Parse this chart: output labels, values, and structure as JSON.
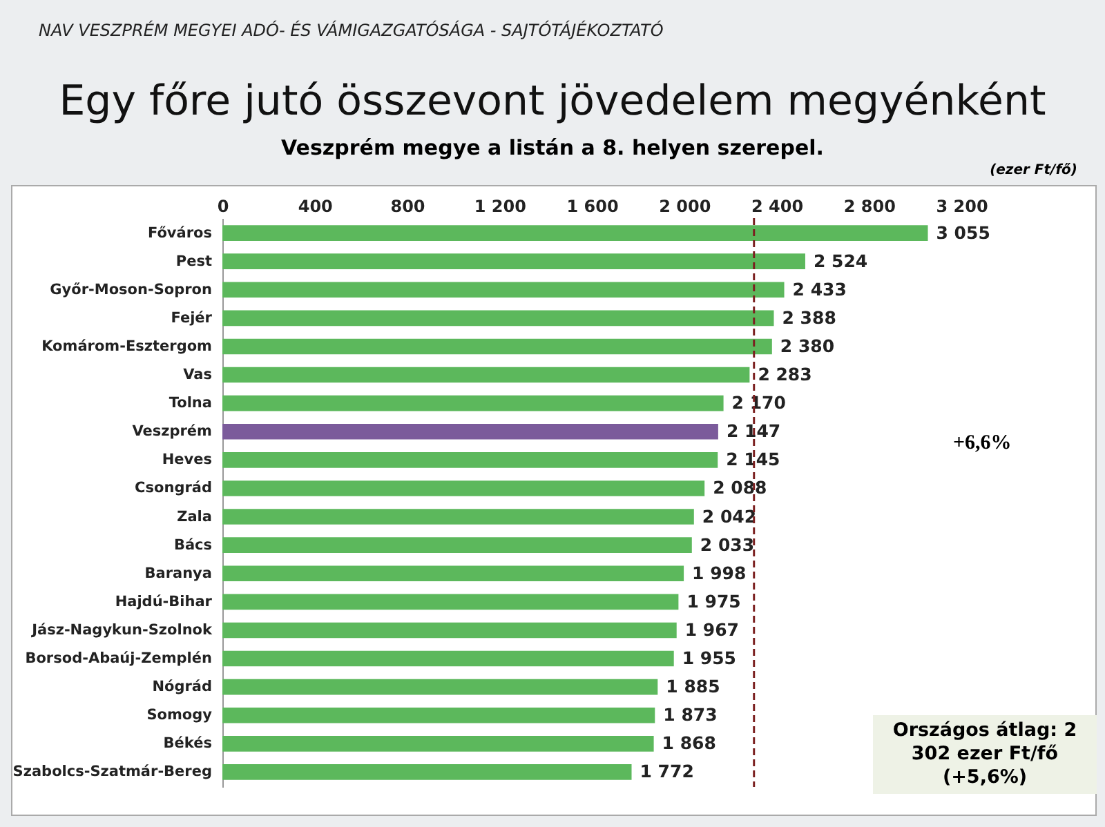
{
  "chart_data": {
    "type": "bar",
    "orientation": "horizontal",
    "title": "Egy főre jutó összevont jövedelem megyénként",
    "subtitle": "Veszprém megye a listán a 8. helyen szerepel.",
    "xlabel": "(ezer Ft/fő)",
    "categories": [
      "Főváros",
      "Pest",
      "Győr-Moson-Sopron",
      "Fejér",
      "Komárom-Esztergom",
      "Vas",
      "Tolna",
      "Veszprém",
      "Heves",
      "Csongrád",
      "Zala",
      "Bács",
      "Baranya",
      "Hajdú-Bihar",
      "Jász-Nagykun-Szolnok",
      "Borsod-Abaúj-Zemplén",
      "Nógrád",
      "Somogy",
      "Békés",
      "Szabolcs-Szatmár-Bereg"
    ],
    "values": [
      3055,
      2524,
      2433,
      2388,
      2380,
      2283,
      2170,
      2147,
      2145,
      2088,
      2042,
      2033,
      1998,
      1975,
      1967,
      1955,
      1885,
      1873,
      1868,
      1772
    ],
    "value_labels": [
      "3 055",
      "2 524",
      "2 433",
      "2 388",
      "2 380",
      "2 283",
      "2 170",
      "2 147",
      "2 145",
      "2 088",
      "2 042",
      "2 033",
      "1 998",
      "1 975",
      "1 967",
      "1 955",
      "1 885",
      "1 873",
      "1 868",
      "1 772"
    ],
    "colors": [
      "#5cb85c",
      "#5cb85c",
      "#5cb85c",
      "#5cb85c",
      "#5cb85c",
      "#5cb85c",
      "#5cb85c",
      "#7b5b9b",
      "#5cb85c",
      "#5cb85c",
      "#5cb85c",
      "#5cb85c",
      "#5cb85c",
      "#5cb85c",
      "#5cb85c",
      "#5cb85c",
      "#5cb85c",
      "#5cb85c",
      "#5cb85c",
      "#5cb85c"
    ],
    "xlim": [
      0,
      3200
    ],
    "xticks": [
      0,
      400,
      800,
      {
        "value": 1200,
        "label": "1 200"
      },
      {
        "value": 1600,
        "label": "1 600"
      },
      {
        "value": 2000,
        "label": "2 000"
      },
      {
        "value": 2400,
        "label": "2 400"
      },
      {
        "value": 2800,
        "label": "2 800"
      },
      {
        "value": 3200,
        "label": "3 200"
      }
    ],
    "ref_lines": [
      {
        "axis": "x",
        "value": 2302,
        "color": "#7b2020",
        "line_style": "dashed"
      }
    ],
    "annotations": [
      "NAV VESZPRÉM MEGYEI ADÓ- ÉS VÁMIGAZGATÓSÁGA - SAJTÓTÁJÉKOZTATÓ",
      "+6,6%",
      "Országos átlag: 2 302 ezer Ft/fő (+5,6%)"
    ],
    "grid": false
  }
}
